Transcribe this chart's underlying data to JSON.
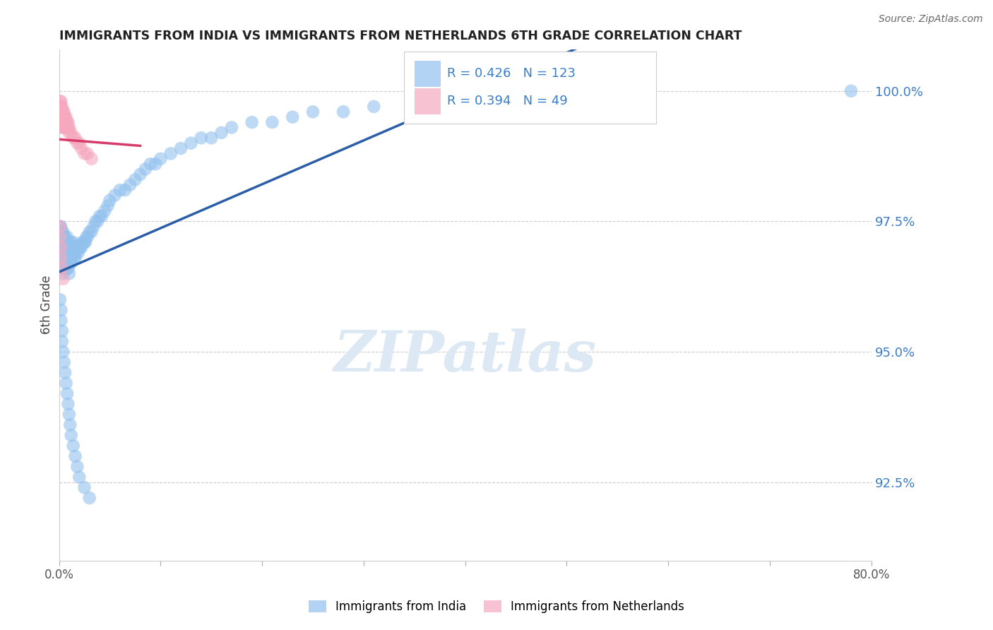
{
  "title": "IMMIGRANTS FROM INDIA VS IMMIGRANTS FROM NETHERLANDS 6TH GRADE CORRELATION CHART",
  "source": "Source: ZipAtlas.com",
  "ylabel": "6th Grade",
  "ylabel_right_ticks": [
    "100.0%",
    "97.5%",
    "95.0%",
    "92.5%"
  ],
  "ylabel_right_vals": [
    1.0,
    0.975,
    0.95,
    0.925
  ],
  "xlim": [
    0.0,
    0.8
  ],
  "ylim": [
    0.91,
    1.008
  ],
  "india_R": 0.426,
  "india_N": 123,
  "netherlands_R": 0.394,
  "netherlands_N": 49,
  "india_color": "#92C1EE",
  "netherlands_color": "#F5A8BE",
  "india_line_color": "#2B5EA7",
  "netherlands_line_color": "#D63B6A",
  "watermark_text": "ZIPatlas",
  "watermark_color": "#DCE9F5",
  "india_scatter_x": [
    0.001,
    0.001,
    0.001,
    0.001,
    0.002,
    0.002,
    0.002,
    0.002,
    0.002,
    0.003,
    0.003,
    0.003,
    0.003,
    0.004,
    0.004,
    0.004,
    0.004,
    0.004,
    0.005,
    0.005,
    0.005,
    0.005,
    0.006,
    0.006,
    0.006,
    0.006,
    0.007,
    0.007,
    0.007,
    0.008,
    0.008,
    0.008,
    0.008,
    0.009,
    0.009,
    0.009,
    0.01,
    0.01,
    0.01,
    0.01,
    0.011,
    0.011,
    0.012,
    0.012,
    0.012,
    0.013,
    0.013,
    0.014,
    0.014,
    0.015,
    0.015,
    0.016,
    0.016,
    0.017,
    0.018,
    0.019,
    0.02,
    0.021,
    0.022,
    0.023,
    0.024,
    0.025,
    0.026,
    0.027,
    0.028,
    0.03,
    0.032,
    0.034,
    0.036,
    0.038,
    0.04,
    0.042,
    0.045,
    0.048,
    0.05,
    0.055,
    0.06,
    0.065,
    0.07,
    0.075,
    0.08,
    0.085,
    0.09,
    0.095,
    0.1,
    0.11,
    0.12,
    0.13,
    0.14,
    0.15,
    0.16,
    0.17,
    0.19,
    0.21,
    0.23,
    0.25,
    0.28,
    0.31,
    0.35,
    0.39,
    0.43,
    0.47,
    0.51,
    0.001,
    0.002,
    0.002,
    0.003,
    0.003,
    0.004,
    0.005,
    0.006,
    0.007,
    0.008,
    0.009,
    0.01,
    0.011,
    0.012,
    0.014,
    0.016,
    0.018,
    0.02,
    0.025,
    0.03,
    0.78
  ],
  "india_scatter_y": [
    0.974,
    0.972,
    0.97,
    0.968,
    0.974,
    0.972,
    0.97,
    0.968,
    0.966,
    0.973,
    0.971,
    0.969,
    0.967,
    0.973,
    0.971,
    0.969,
    0.967,
    0.965,
    0.972,
    0.97,
    0.968,
    0.966,
    0.972,
    0.97,
    0.968,
    0.966,
    0.971,
    0.969,
    0.967,
    0.972,
    0.97,
    0.968,
    0.966,
    0.97,
    0.968,
    0.966,
    0.971,
    0.969,
    0.967,
    0.965,
    0.97,
    0.968,
    0.971,
    0.969,
    0.967,
    0.97,
    0.968,
    0.971,
    0.969,
    0.97,
    0.968,
    0.97,
    0.968,
    0.969,
    0.97,
    0.969,
    0.97,
    0.97,
    0.97,
    0.971,
    0.971,
    0.971,
    0.971,
    0.972,
    0.972,
    0.973,
    0.973,
    0.974,
    0.975,
    0.975,
    0.976,
    0.976,
    0.977,
    0.978,
    0.979,
    0.98,
    0.981,
    0.981,
    0.982,
    0.983,
    0.984,
    0.985,
    0.986,
    0.986,
    0.987,
    0.988,
    0.989,
    0.99,
    0.991,
    0.991,
    0.992,
    0.993,
    0.994,
    0.994,
    0.995,
    0.996,
    0.996,
    0.997,
    0.997,
    0.997,
    0.998,
    0.998,
    0.998,
    0.96,
    0.958,
    0.956,
    0.954,
    0.952,
    0.95,
    0.948,
    0.946,
    0.944,
    0.942,
    0.94,
    0.938,
    0.936,
    0.934,
    0.932,
    0.93,
    0.928,
    0.926,
    0.924,
    0.922,
    1.0
  ],
  "netherlands_scatter_x": [
    0.001,
    0.001,
    0.001,
    0.001,
    0.001,
    0.002,
    0.002,
    0.002,
    0.002,
    0.002,
    0.003,
    0.003,
    0.003,
    0.003,
    0.004,
    0.004,
    0.004,
    0.004,
    0.005,
    0.005,
    0.005,
    0.005,
    0.006,
    0.006,
    0.006,
    0.007,
    0.007,
    0.007,
    0.008,
    0.008,
    0.009,
    0.009,
    0.01,
    0.01,
    0.012,
    0.014,
    0.016,
    0.018,
    0.02,
    0.022,
    0.025,
    0.028,
    0.032,
    0.001,
    0.001,
    0.002,
    0.002,
    0.003,
    0.004
  ],
  "netherlands_scatter_y": [
    0.998,
    0.997,
    0.996,
    0.995,
    0.994,
    0.998,
    0.997,
    0.996,
    0.995,
    0.993,
    0.997,
    0.996,
    0.995,
    0.994,
    0.996,
    0.995,
    0.994,
    0.993,
    0.996,
    0.995,
    0.994,
    0.993,
    0.995,
    0.994,
    0.993,
    0.995,
    0.994,
    0.993,
    0.994,
    0.993,
    0.994,
    0.993,
    0.993,
    0.992,
    0.992,
    0.991,
    0.991,
    0.99,
    0.99,
    0.989,
    0.988,
    0.988,
    0.987,
    0.974,
    0.972,
    0.97,
    0.968,
    0.966,
    0.964
  ]
}
